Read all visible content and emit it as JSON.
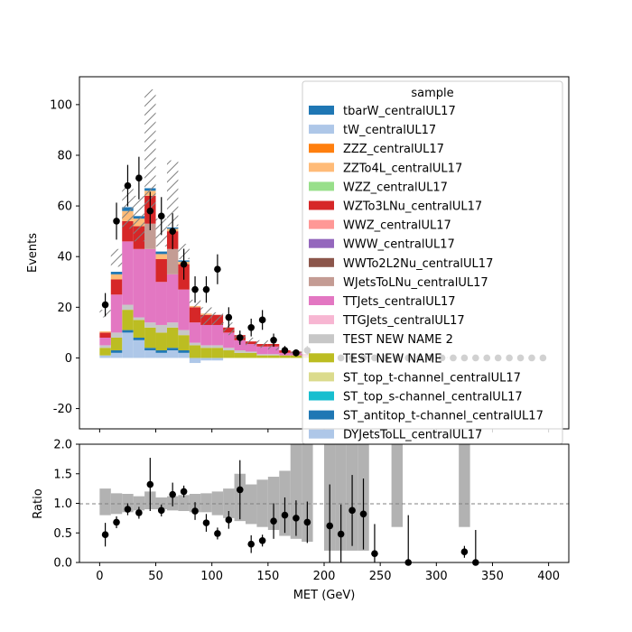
{
  "chart_data": [
    {
      "panel": "main",
      "type": "bar",
      "stacked": true,
      "ylabel": "Events",
      "xlim": [
        -18,
        418
      ],
      "ylim": [
        -28,
        111
      ],
      "yticks": [
        -20,
        0,
        20,
        40,
        60,
        80,
        100
      ],
      "bin_edges": [
        0,
        10,
        20,
        30,
        40,
        50,
        60,
        70,
        80,
        90,
        100,
        110,
        120,
        130,
        140,
        150,
        160,
        170,
        180,
        190,
        200,
        210,
        220,
        230,
        240,
        250,
        260,
        270,
        280,
        290,
        300,
        310,
        320,
        330,
        340,
        350,
        360,
        370,
        380,
        390,
        400
      ],
      "legend": {
        "title": "sample",
        "placement": "upper right",
        "entries": [
          {
            "name": "tbarW_centralUL17",
            "color": "#1f77b4"
          },
          {
            "name": "tW_centralUL17",
            "color": "#aec7e8"
          },
          {
            "name": "ZZZ_centralUL17",
            "color": "#ff7f0e"
          },
          {
            "name": "ZZTo4L_centralUL17",
            "color": "#ffbb78"
          },
          {
            "name": "WZZ_centralUL17",
            "color": "#98df8a"
          },
          {
            "name": "WZTo3LNu_centralUL17",
            "color": "#d62728"
          },
          {
            "name": "WWZ_centralUL17",
            "color": "#ff9896"
          },
          {
            "name": "WWW_centralUL17",
            "color": "#9467bd"
          },
          {
            "name": "WWTo2L2Nu_centralUL17",
            "color": "#8c564b"
          },
          {
            "name": "WJetsToLNu_centralUL17",
            "color": "#c49c94"
          },
          {
            "name": "TTJets_centralUL17",
            "color": "#e377c2"
          },
          {
            "name": "TTGJets_centralUL17",
            "color": "#f7b6d2"
          },
          {
            "name": "TEST NEW NAME 2",
            "color": "#c7c7c7"
          },
          {
            "name": "TEST NEW NAME",
            "color": "#bcbd22"
          },
          {
            "name": "ST_top_t-channel_centralUL17",
            "color": "#dbdb8d"
          },
          {
            "name": "ST_top_s-channel_centralUL17",
            "color": "#17becf"
          },
          {
            "name": "ST_antitop_t-channel_centralUL17",
            "color": "#1f77b4"
          },
          {
            "name": "DYJetsToLL_centralUL17",
            "color": "#aec7e8"
          }
        ]
      },
      "stack_series": [
        {
          "name": "DYJetsToLL_centralUL17",
          "color": "#aec7e8",
          "values": [
            1,
            2,
            10,
            7,
            3,
            2,
            3,
            2,
            -2,
            -1,
            -1,
            0,
            0,
            0,
            0,
            0,
            0,
            0,
            0,
            0,
            0,
            0,
            0,
            0,
            0,
            0,
            0,
            0,
            0,
            0,
            0,
            0,
            0,
            0,
            0,
            0,
            0,
            0,
            0,
            0
          ]
        },
        {
          "name": "ST_antitop_t-channel_centralUL17",
          "color": "#1f77b4",
          "values": [
            0,
            1,
            1,
            1,
            1,
            1,
            1,
            1,
            0,
            0,
            0,
            0,
            0,
            0,
            0,
            0,
            0,
            0,
            0,
            0,
            0,
            0,
            0,
            0,
            0,
            0,
            0,
            0,
            0,
            0,
            0,
            0,
            0,
            0,
            0,
            0,
            0,
            0,
            0,
            0
          ]
        },
        {
          "name": "TEST NEW NAME",
          "color": "#bcbd22",
          "values": [
            3,
            5,
            8,
            7,
            8,
            7,
            8,
            6,
            5,
            4,
            4,
            3,
            2,
            2,
            1,
            1,
            1,
            1,
            0.5,
            0.5,
            0,
            0,
            0,
            0,
            0,
            0,
            0,
            0,
            0,
            0,
            0,
            0,
            0,
            0,
            0,
            0,
            0,
            0,
            0,
            0
          ]
        },
        {
          "name": "TEST NEW NAME 2",
          "color": "#c7c7c7",
          "values": [
            1,
            2,
            2,
            1,
            2,
            3,
            2,
            2,
            1,
            1,
            1,
            1,
            1,
            0.5,
            0.5,
            0.5,
            0,
            0,
            0,
            0,
            0,
            0,
            0,
            0,
            0,
            0,
            0,
            0,
            0,
            0,
            0,
            0,
            0,
            0,
            0,
            0,
            0,
            0,
            0,
            0
          ]
        },
        {
          "name": "TTJets_centralUL17",
          "color": "#e377c2",
          "values": [
            3,
            15,
            25,
            27,
            29,
            17,
            19,
            16,
            8,
            8,
            8,
            6,
            4,
            3,
            3,
            3,
            1,
            1,
            0.5,
            0.5,
            0,
            0,
            0,
            0,
            0,
            0,
            0,
            0,
            0,
            0,
            0,
            0,
            0,
            0,
            0,
            0,
            0,
            0,
            0,
            0
          ]
        },
        {
          "name": "WJetsToLNu_centralUL17",
          "color": "#c49c94",
          "values": [
            0,
            0,
            0,
            0,
            10,
            0,
            10,
            0,
            0,
            0,
            0,
            0,
            0,
            0,
            0,
            0,
            0,
            0,
            0,
            0,
            0,
            0,
            0,
            0,
            0,
            0,
            0,
            0,
            0,
            0,
            0,
            0,
            0,
            0,
            0,
            0,
            0,
            0,
            0,
            0
          ]
        },
        {
          "name": "WZTo3LNu_centralUL17",
          "color": "#d62728",
          "values": [
            2,
            6,
            8,
            9,
            11,
            9,
            7,
            10,
            6,
            4,
            4,
            2,
            2,
            1,
            1,
            1,
            1,
            0.5,
            0.5,
            0,
            0,
            0,
            0,
            0,
            0,
            0,
            0,
            0,
            0,
            0,
            0,
            0,
            0,
            0,
            0,
            0,
            0,
            0,
            0,
            0
          ]
        },
        {
          "name": "ZZTo4L_centralUL17",
          "color": "#ffbb78",
          "values": [
            0.5,
            2,
            4,
            3,
            2,
            2,
            1,
            1,
            0.5,
            0.5,
            0,
            0,
            0,
            0,
            0,
            0,
            0,
            0,
            0,
            0,
            0,
            0,
            0,
            0,
            0,
            0,
            0,
            0,
            0,
            0,
            0,
            0,
            0,
            0,
            0,
            0,
            0,
            0,
            0,
            0
          ]
        },
        {
          "name": "tbarW_centralUL17",
          "color": "#1f77b4",
          "values": [
            0,
            1,
            1.5,
            1,
            1,
            1,
            0.5,
            0.5,
            0,
            0,
            0,
            0,
            0,
            0,
            0,
            0,
            0,
            0,
            0,
            0,
            0,
            0,
            0,
            0,
            0,
            0,
            0,
            0,
            0,
            0,
            0,
            0,
            0,
            0,
            0,
            0,
            0,
            0,
            0,
            0
          ]
        }
      ],
      "uncertainty_band": {
        "low": [
          16,
          36,
          51,
          46,
          59,
          44,
          52,
          39,
          20,
          13,
          13,
          9,
          6,
          5,
          4,
          3,
          2,
          1.5,
          1,
          0.5,
          0.3,
          0.2,
          0,
          0,
          0,
          0,
          0,
          0,
          0,
          0,
          0,
          0,
          0,
          0,
          0,
          0,
          0,
          0,
          0,
          0
        ],
        "high": [
          19,
          43,
          69,
          64,
          106,
          55,
          78,
          45,
          23,
          20,
          18,
          14,
          9,
          8,
          7,
          5,
          3.5,
          2.5,
          2,
          1.5,
          1,
          1,
          0.6,
          0.5,
          0.5,
          0.5,
          0.5,
          0.5,
          0.5,
          0.3,
          0.3,
          0.3,
          0.3,
          0.3,
          0,
          0,
          0,
          0,
          0,
          0
        ]
      },
      "data_points": {
        "name": "data",
        "x": [
          5,
          15,
          25,
          35,
          45,
          55,
          65,
          75,
          85,
          95,
          105,
          115,
          125,
          135,
          145,
          155,
          165,
          175,
          185,
          195,
          205,
          215,
          225,
          235,
          245,
          255,
          265,
          275,
          285,
          295,
          305,
          315,
          325,
          335,
          345,
          355,
          365,
          375,
          385,
          395
        ],
        "y": [
          21,
          54,
          68,
          71,
          58,
          56,
          50,
          37,
          27,
          27,
          35,
          16,
          8,
          12,
          15,
          7,
          3,
          2,
          3,
          0,
          0,
          0,
          0,
          0,
          0,
          0,
          0,
          0,
          0,
          0,
          0,
          0,
          0,
          0,
          0,
          0,
          0,
          0,
          0,
          0
        ],
        "yerr": [
          4.6,
          7.3,
          8.2,
          8.4,
          7.6,
          7.5,
          7.1,
          6.1,
          5.2,
          5.2,
          5.9,
          4,
          2.8,
          3.5,
          3.9,
          2.6,
          1.7,
          1.4,
          1.7,
          0,
          0,
          0,
          0,
          0,
          0,
          0,
          0,
          0,
          0,
          0,
          0,
          0,
          0,
          0,
          0,
          0,
          0,
          0,
          0,
          0
        ]
      }
    },
    {
      "panel": "ratio",
      "type": "scatter",
      "xlabel": "MET (GeV)",
      "ylabel": "Ratio",
      "xlim": [
        -18,
        418
      ],
      "ylim": [
        0,
        2.0
      ],
      "yticks": [
        0.0,
        0.5,
        1.0,
        1.5,
        2.0
      ],
      "xticks": [
        0,
        50,
        100,
        150,
        200,
        250,
        300,
        350,
        400
      ],
      "reference_line": 1.0,
      "band": {
        "low": [
          0.8,
          0.82,
          0.85,
          0.88,
          0.9,
          0.9,
          0.88,
          0.87,
          0.85,
          0.85,
          0.8,
          0.75,
          0.7,
          0.65,
          0.6,
          0.55,
          0.45,
          0.4,
          0.35,
          0,
          0.2,
          0.2,
          0.2,
          0.2,
          0,
          0,
          0.6,
          0,
          0,
          0,
          0,
          0,
          0.6,
          0,
          0,
          0,
          0,
          0,
          0,
          0
        ],
        "high": [
          1.25,
          1.17,
          1.16,
          1.12,
          1.2,
          1.1,
          1.12,
          1.14,
          1.16,
          1.17,
          1.2,
          1.25,
          1.5,
          1.32,
          1.4,
          1.45,
          1.55,
          2.0,
          2.0,
          0,
          2.0,
          2.0,
          2.0,
          2.0,
          0,
          0,
          2.0,
          0,
          0,
          0,
          0,
          0,
          2.0,
          0,
          0,
          0,
          0,
          0,
          0,
          0
        ],
        "color": "#b2b2b2"
      },
      "points": {
        "x": [
          5,
          15,
          25,
          35,
          45,
          55,
          65,
          75,
          85,
          95,
          105,
          115,
          125,
          135,
          145,
          155,
          165,
          175,
          185,
          205,
          215,
          225,
          235,
          245,
          275,
          325,
          335
        ],
        "y": [
          0.47,
          0.68,
          0.9,
          0.84,
          1.32,
          0.88,
          1.15,
          1.2,
          0.87,
          0.67,
          0.49,
          0.72,
          1.23,
          0.31,
          0.37,
          0.7,
          0.8,
          0.75,
          0.68,
          0.62,
          0.48,
          0.88,
          0.82,
          0.15,
          0.0,
          0.18,
          0.0
        ],
        "yerr": [
          0.2,
          0.1,
          0.1,
          0.1,
          0.45,
          0.1,
          0.2,
          0.1,
          0.15,
          0.15,
          0.1,
          0.15,
          0.5,
          0.15,
          0.1,
          0.3,
          0.3,
          0.3,
          0.35,
          0.7,
          0.5,
          0.6,
          0.6,
          0.5,
          0.8,
          0.1,
          0.55
        ]
      }
    }
  ]
}
